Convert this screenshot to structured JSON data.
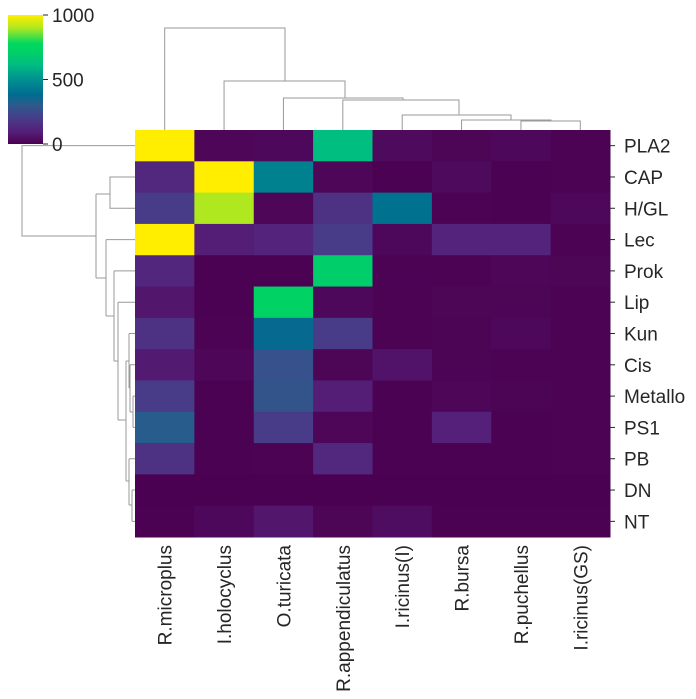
{
  "chart_data": {
    "type": "heatmap",
    "title": "",
    "xlabel": "",
    "ylabel": "",
    "columns": [
      "R.microplus",
      "I.holocyclus",
      "O.turicata",
      "R.appendiculatus",
      "I.ricinus(I)",
      "R.bursa",
      "R.puchellus",
      "I.ricinus(GS)"
    ],
    "rows": [
      "PLA2",
      "CAP",
      "H/GL",
      "Lec",
      "Prok",
      "Lip",
      "Kun",
      "Cis",
      "Metallo",
      "PS1",
      "PB",
      "DN",
      "NT"
    ],
    "values": [
      [
        1000,
        20,
        25,
        620,
        30,
        15,
        25,
        10
      ],
      [
        130,
        1000,
        450,
        20,
        5,
        30,
        5,
        10
      ],
      [
        200,
        900,
        20,
        160,
        400,
        10,
        5,
        25
      ],
      [
        1000,
        90,
        110,
        200,
        25,
        110,
        110,
        10
      ],
      [
        120,
        5,
        5,
        700,
        10,
        10,
        20,
        15
      ],
      [
        70,
        5,
        720,
        25,
        10,
        15,
        15,
        8
      ],
      [
        160,
        8,
        370,
        200,
        8,
        12,
        25,
        8
      ],
      [
        80,
        20,
        270,
        15,
        60,
        12,
        8,
        8
      ],
      [
        200,
        5,
        280,
        90,
        5,
        20,
        12,
        8
      ],
      [
        310,
        5,
        200,
        20,
        5,
        100,
        5,
        8
      ],
      [
        160,
        5,
        10,
        130,
        5,
        5,
        5,
        8
      ],
      [
        2,
        2,
        2,
        2,
        2,
        2,
        2,
        2
      ],
      [
        5,
        25,
        70,
        15,
        40,
        5,
        5,
        5
      ]
    ],
    "colorbar": {
      "range": [
        0,
        1000
      ],
      "ticks": [
        "0",
        "500",
        "1000"
      ],
      "colormap": "viridis",
      "stops": [
        [
          0,
          "#4b0050"
        ],
        [
          100,
          "#55207a"
        ],
        [
          200,
          "#483c88"
        ],
        [
          300,
          "#2e5a8c"
        ],
        [
          380,
          "#006c90"
        ],
        [
          500,
          "#009090"
        ],
        [
          620,
          "#00be80"
        ],
        [
          720,
          "#00d264"
        ],
        [
          780,
          "#00d860"
        ],
        [
          900,
          "#b0e820"
        ],
        [
          1000,
          "#ffee00"
        ]
      ]
    },
    "row_dendrogram": true,
    "column_dendrogram": true
  }
}
